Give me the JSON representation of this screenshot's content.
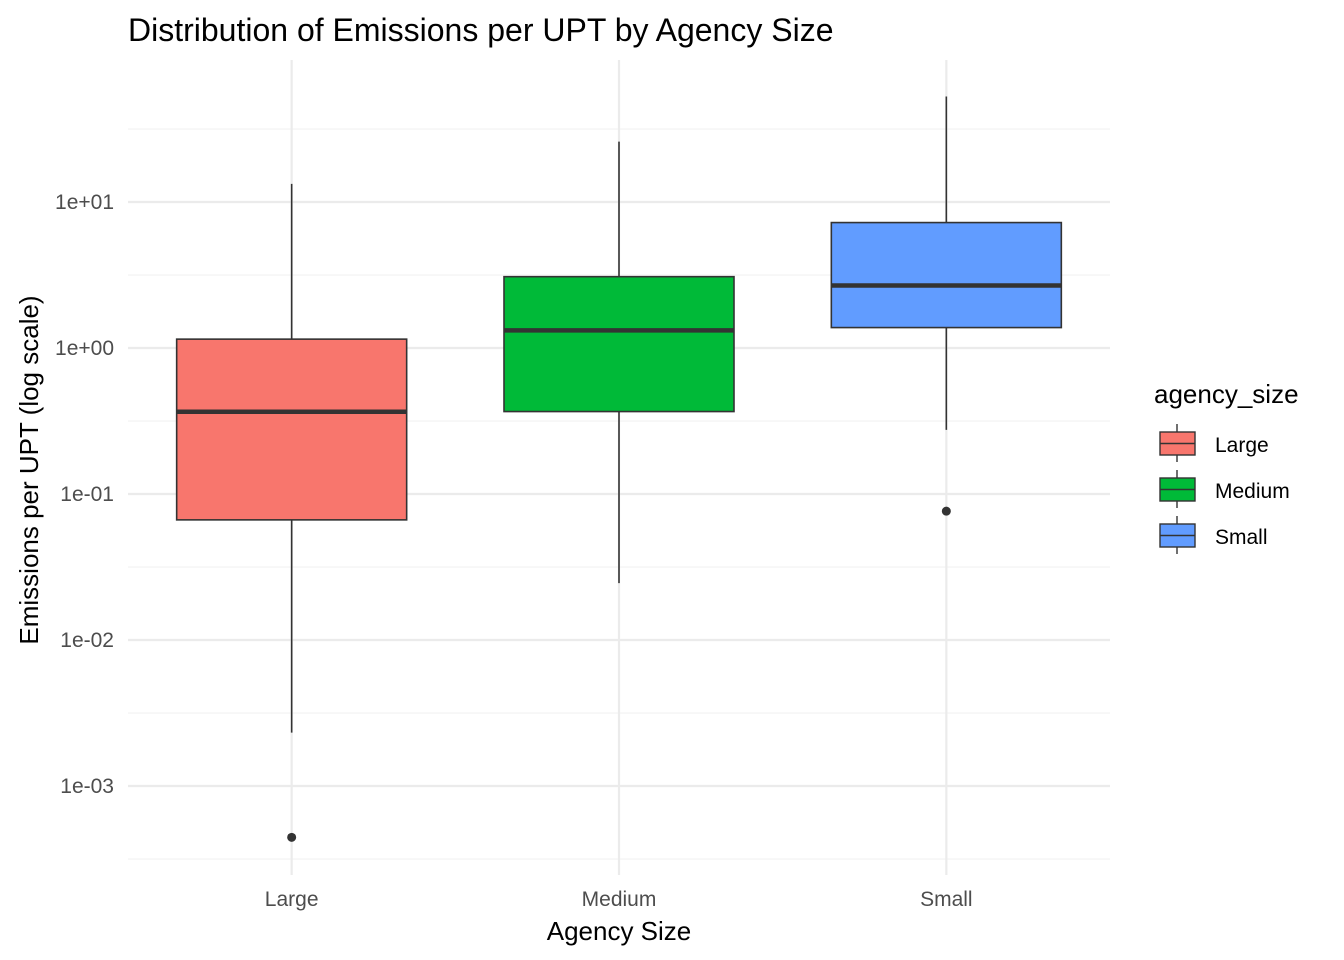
{
  "chart_data": {
    "type": "boxplot",
    "title": "Distribution of Emissions per UPT by Agency Size",
    "xlabel": "Agency Size",
    "ylabel": "Emissions per UPT (log scale)",
    "y_scale": "log10",
    "ylim": [
      0.00018,
      1000
    ],
    "y_ticks": [
      {
        "value": 0.001,
        "label": "1e-03"
      },
      {
        "value": 0.01,
        "label": "1e-02"
      },
      {
        "value": 0.1,
        "label": "1e-01"
      },
      {
        "value": 1,
        "label": "1e+00"
      },
      {
        "value": 10,
        "label": "1e+01"
      }
    ],
    "y_minor_ticks": [
      0.000316,
      0.00316,
      0.0316,
      0.316,
      3.16,
      31.6
    ],
    "grid": true,
    "categories": [
      "Large",
      "Medium",
      "Small"
    ],
    "boxes": [
      {
        "category": "Large",
        "min": 0.00232,
        "q1": 0.0665,
        "median": 0.366,
        "q3": 1.15,
        "max": 13.3,
        "outliers": [
          0.000445
        ],
        "color": "#F8766D"
      },
      {
        "category": "Medium",
        "min": 0.0245,
        "q1": 0.367,
        "median": 1.32,
        "q3": 3.08,
        "max": 25.9,
        "outliers": [],
        "color": "#00BA38"
      },
      {
        "category": "Small",
        "min": 0.275,
        "q1": 1.38,
        "median": 2.68,
        "q3": 7.23,
        "max": 52.8,
        "outliers": [
          0.0763
        ],
        "color": "#619CFF"
      }
    ],
    "legend": {
      "title": "agency_size",
      "position": "right",
      "entries": [
        {
          "label": "Large",
          "color": "#F8766D"
        },
        {
          "label": "Medium",
          "color": "#00BA38"
        },
        {
          "label": "Small",
          "color": "#619CFF"
        }
      ]
    }
  }
}
